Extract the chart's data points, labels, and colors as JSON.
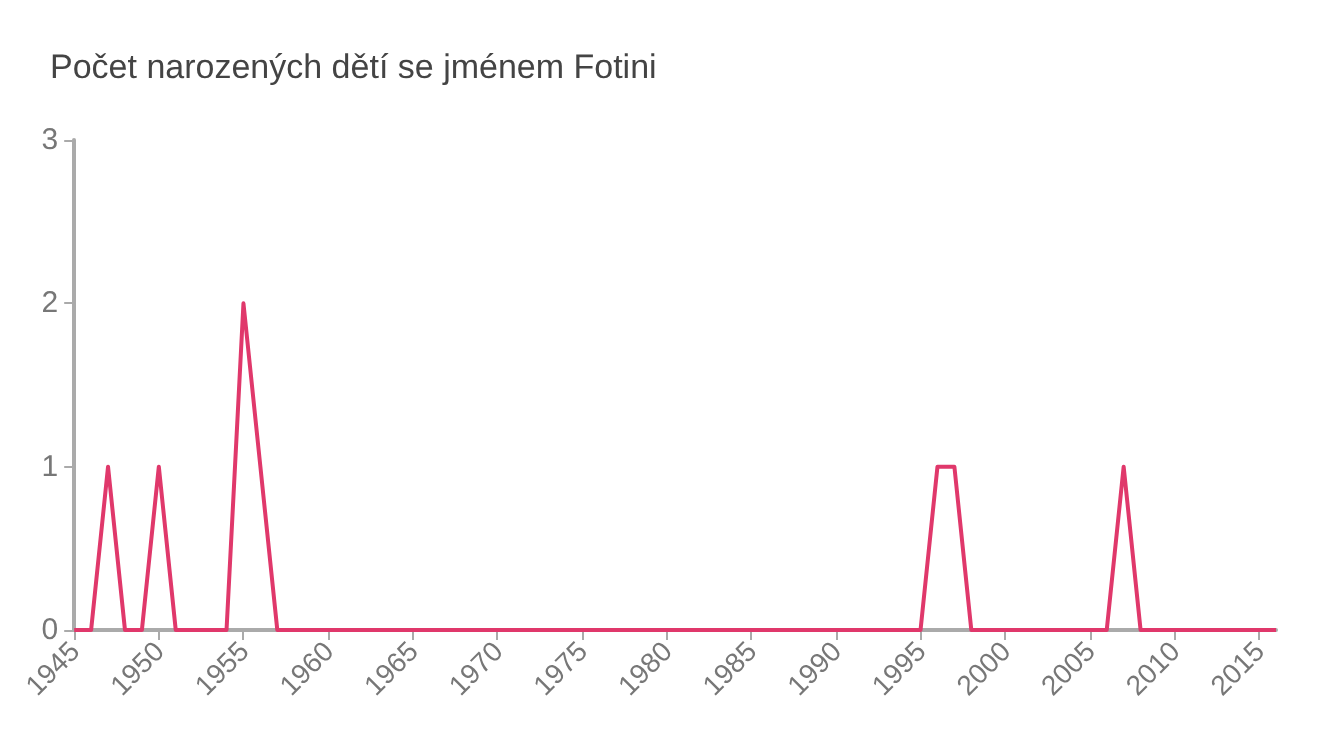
{
  "chart_data": {
    "type": "line",
    "title": "Počet narozených dětí se jménem Fotini",
    "x": [
      1945,
      1946,
      1947,
      1948,
      1949,
      1950,
      1951,
      1952,
      1953,
      1954,
      1955,
      1956,
      1957,
      1958,
      1959,
      1960,
      1961,
      1962,
      1963,
      1964,
      1965,
      1966,
      1967,
      1968,
      1969,
      1970,
      1971,
      1972,
      1973,
      1974,
      1975,
      1976,
      1977,
      1978,
      1979,
      1980,
      1981,
      1982,
      1983,
      1984,
      1985,
      1986,
      1987,
      1988,
      1989,
      1990,
      1991,
      1992,
      1993,
      1994,
      1995,
      1996,
      1997,
      1998,
      1999,
      2000,
      2001,
      2002,
      2003,
      2004,
      2005,
      2006,
      2007,
      2008,
      2009,
      2010,
      2011,
      2012,
      2013,
      2014,
      2015,
      2016
    ],
    "series": [
      {
        "color": "#e0386b",
        "values": [
          0,
          0,
          1,
          0,
          0,
          1,
          0,
          0,
          0,
          0,
          2,
          1,
          0,
          0,
          0,
          0,
          0,
          0,
          0,
          0,
          0,
          0,
          0,
          0,
          0,
          0,
          0,
          0,
          0,
          0,
          0,
          0,
          0,
          0,
          0,
          0,
          0,
          0,
          0,
          0,
          0,
          0,
          0,
          0,
          0,
          0,
          0,
          0,
          0,
          0,
          0,
          1,
          1,
          0,
          0,
          0,
          0,
          0,
          0,
          0,
          0,
          0,
          1,
          0,
          0,
          0,
          0,
          0,
          0,
          0,
          0,
          0
        ]
      }
    ],
    "xlim": [
      1945,
      2016
    ],
    "xticks": [
      1945,
      1950,
      1955,
      1960,
      1965,
      1970,
      1975,
      1980,
      1985,
      1990,
      1995,
      2000,
      2005,
      2010,
      2015
    ],
    "ylim": [
      0,
      3
    ],
    "yticks": [
      0,
      1,
      2,
      3
    ],
    "grid": false,
    "marker": "none",
    "line_style": "solid"
  }
}
